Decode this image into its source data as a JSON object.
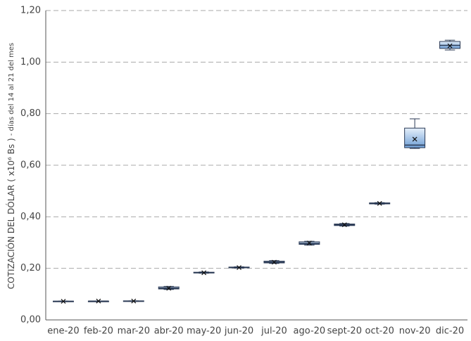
{
  "chart_data": {
    "type": "box",
    "y_label": "COTIZACIÓN DEL DÓLAR ( x10⁶ Bs )",
    "y_label_note": " - días del 14 al 21 del mes",
    "categories": [
      "ene-20",
      "feb-20",
      "mar-20",
      "abr-20",
      "may-20",
      "jun-20",
      "jul-20",
      "ago-20",
      "sept-20",
      "oct-20",
      "nov-20",
      "dic-20"
    ],
    "boxes": [
      {
        "min": 0.071,
        "q1": 0.071,
        "median": 0.072,
        "q3": 0.073,
        "max": 0.073,
        "mean": 0.072
      },
      {
        "min": 0.073,
        "q1": 0.073,
        "median": 0.073,
        "q3": 0.073,
        "max": 0.073,
        "mean": 0.073
      },
      {
        "min": 0.072,
        "q1": 0.072,
        "median": 0.073,
        "q3": 0.074,
        "max": 0.074,
        "mean": 0.073
      },
      {
        "min": 0.118,
        "q1": 0.12,
        "median": 0.123,
        "q3": 0.128,
        "max": 0.13,
        "mean": 0.123
      },
      {
        "min": 0.181,
        "q1": 0.182,
        "median": 0.183,
        "q3": 0.185,
        "max": 0.186,
        "mean": 0.183
      },
      {
        "min": 0.201,
        "q1": 0.202,
        "median": 0.203,
        "q3": 0.205,
        "max": 0.206,
        "mean": 0.203
      },
      {
        "min": 0.219,
        "q1": 0.221,
        "median": 0.224,
        "q3": 0.228,
        "max": 0.23,
        "mean": 0.224
      },
      {
        "min": 0.29,
        "q1": 0.293,
        "median": 0.297,
        "q3": 0.303,
        "max": 0.305,
        "mean": 0.298
      },
      {
        "min": 0.364,
        "q1": 0.366,
        "median": 0.369,
        "q3": 0.372,
        "max": 0.374,
        "mean": 0.369
      },
      {
        "min": 0.449,
        "q1": 0.45,
        "median": 0.452,
        "q3": 0.454,
        "max": 0.455,
        "mean": 0.452
      },
      {
        "min": 0.665,
        "q1": 0.668,
        "median": 0.678,
        "q3": 0.744,
        "max": 0.78,
        "mean": 0.701
      },
      {
        "min": 1.047,
        "q1": 1.053,
        "median": 1.065,
        "q3": 1.08,
        "max": 1.085,
        "mean": 1.063
      }
    ],
    "box_color": "#a9c9ee",
    "edge_color": "#2b3a55",
    "ylim": [
      0,
      1.2
    ],
    "yticks": [
      {
        "value": 0,
        "label": "0,00"
      },
      {
        "value": 0.2,
        "label": "0,20"
      },
      {
        "value": 0.4,
        "label": "0,40"
      },
      {
        "value": 0.6,
        "label": "0,60"
      },
      {
        "value": 0.8,
        "label": "0,80"
      },
      {
        "value": 1,
        "label": "1,00"
      },
      {
        "value": 1.2,
        "label": "1,20"
      }
    ],
    "grid": true
  }
}
